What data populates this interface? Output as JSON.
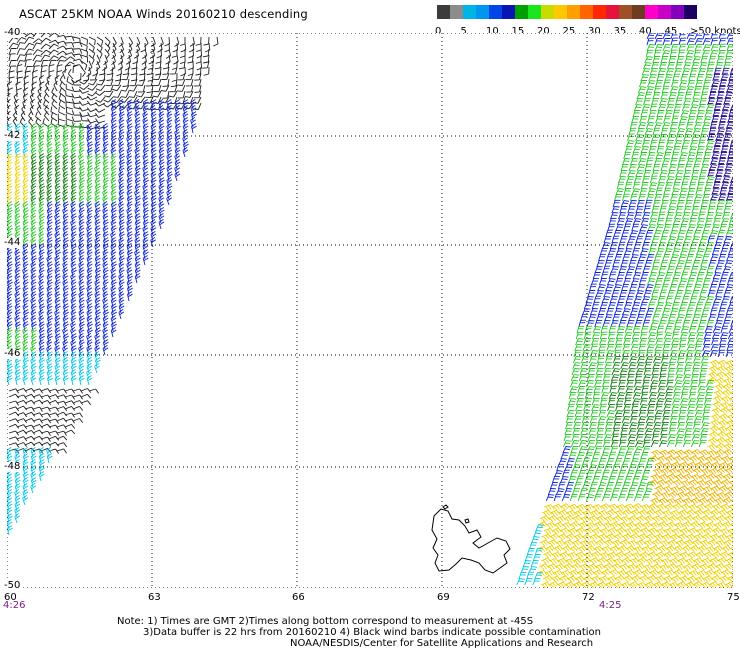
{
  "header": {
    "title": "ASCAT 25KM NOAA Winds 20160210 descending"
  },
  "legend": {
    "colors": [
      "#3c3c3c",
      "#8c8c8c",
      "#00b4e6",
      "#0096f0",
      "#0046e6",
      "#0a14b4",
      "#00a000",
      "#19e61e",
      "#c8dc00",
      "#ffc800",
      "#ffa000",
      "#ff6400",
      "#ff2800",
      "#e6143c",
      "#a05028",
      "#6e3c1e",
      "#ff00c8",
      "#c800c8",
      "#8200be",
      "#1e0064"
    ],
    "labels": [
      "0",
      "5",
      "10",
      "15",
      "20",
      "25",
      "30",
      "35",
      "40",
      "45",
      ">50 knots"
    ]
  },
  "map": {
    "lat_labels": [
      "-40",
      "-42",
      "-44",
      "-46",
      "-48",
      "-50"
    ],
    "lon_labels": [
      "60",
      "63",
      "66",
      "69",
      "72",
      "75"
    ],
    "swath_times": [
      "4:26",
      "4:25"
    ],
    "swath_colors": {
      "weak": "#202020",
      "cyan": "#00c8e6",
      "blue": "#0a20d2",
      "green": "#22c522",
      "darkgreen": "#0a7a0a",
      "yellow": "#f0d200",
      "orange": "#f0b400",
      "navy": "#1e0a8c",
      "coast": "#000000"
    }
  },
  "notes": {
    "line1": "Note: 1) Times are GMT 2)Times along bottom correspond to measurement at -45S",
    "line2": "3)Data buffer is 22 hrs from 20160210 4) Black wind barbs indicate possible contamination",
    "line3": "NOAA/NESDIS/Center for Satellite Applications and Research"
  }
}
